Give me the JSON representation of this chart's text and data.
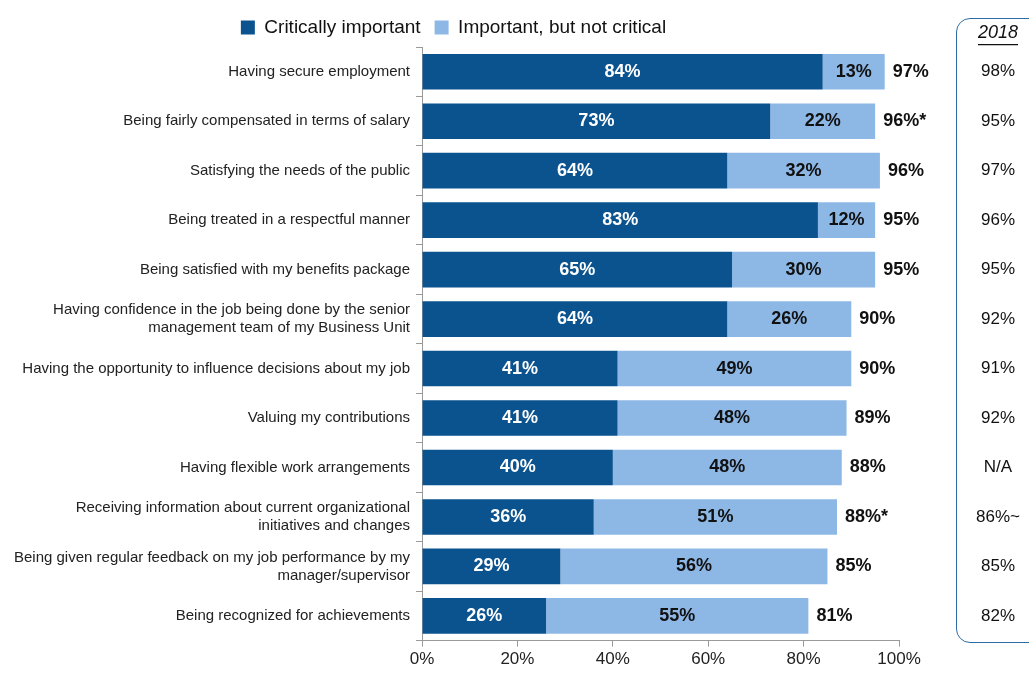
{
  "chart_data": {
    "type": "bar",
    "orientation": "horizontal",
    "stacked": true,
    "categories": [
      "Having secure employment",
      "Being fairly compensated in terms of salary",
      "Satisfying the needs of the public",
      "Being treated in a respectful manner",
      "Being satisfied with my benefits package",
      "Having confidence in the job being done by the senior management team of my Business Unit",
      "Having the opportunity to influence decisions about my job",
      "Valuing my contributions",
      "Having flexible work arrangements",
      "Receiving information about current organizational initiatives and changes",
      "Being given regular feedback on my job performance by my manager/supervisor",
      "Being recognized for achievements"
    ],
    "series": [
      {
        "name": "Critically important",
        "color": "#0b538f",
        "values": [
          84,
          73,
          64,
          83,
          65,
          64,
          41,
          41,
          40,
          36,
          29,
          26
        ],
        "value_labels": [
          "84%",
          "73%",
          "64%",
          "83%",
          "65%",
          "64%",
          "41%",
          "41%",
          "40%",
          "36%",
          "29%",
          "26%"
        ]
      },
      {
        "name": "Important, but not critical",
        "color": "#8db8e6",
        "values": [
          13,
          22,
          32,
          12,
          30,
          26,
          49,
          48,
          48,
          51,
          56,
          55
        ],
        "value_labels": [
          "13%",
          "22%",
          "32%",
          "12%",
          "30%",
          "26%",
          "49%",
          "48%",
          "48%",
          "51%",
          "56%",
          "55%"
        ]
      }
    ],
    "totals": [
      "97%",
      "96%*",
      "96%",
      "95%",
      "95%",
      "90%",
      "90%",
      "89%",
      "88%",
      "88%*",
      "85%",
      "81%"
    ],
    "xlim": [
      0,
      100
    ],
    "xticks": [
      {
        "value": 0,
        "label": "0%"
      },
      {
        "value": 20,
        "label": "20%"
      },
      {
        "value": 40,
        "label": "40%"
      },
      {
        "value": 60,
        "label": "60%"
      },
      {
        "value": 80,
        "label": "80%"
      },
      {
        "value": 100,
        "label": "100%"
      }
    ],
    "grid": false,
    "legend": "top",
    "annotations": [
      "2018",
      "98%",
      "95%",
      "97%",
      "96%",
      "95%",
      "92%",
      "91%",
      "92%",
      "N/A",
      "86%~",
      "85%",
      "82%"
    ]
  }
}
